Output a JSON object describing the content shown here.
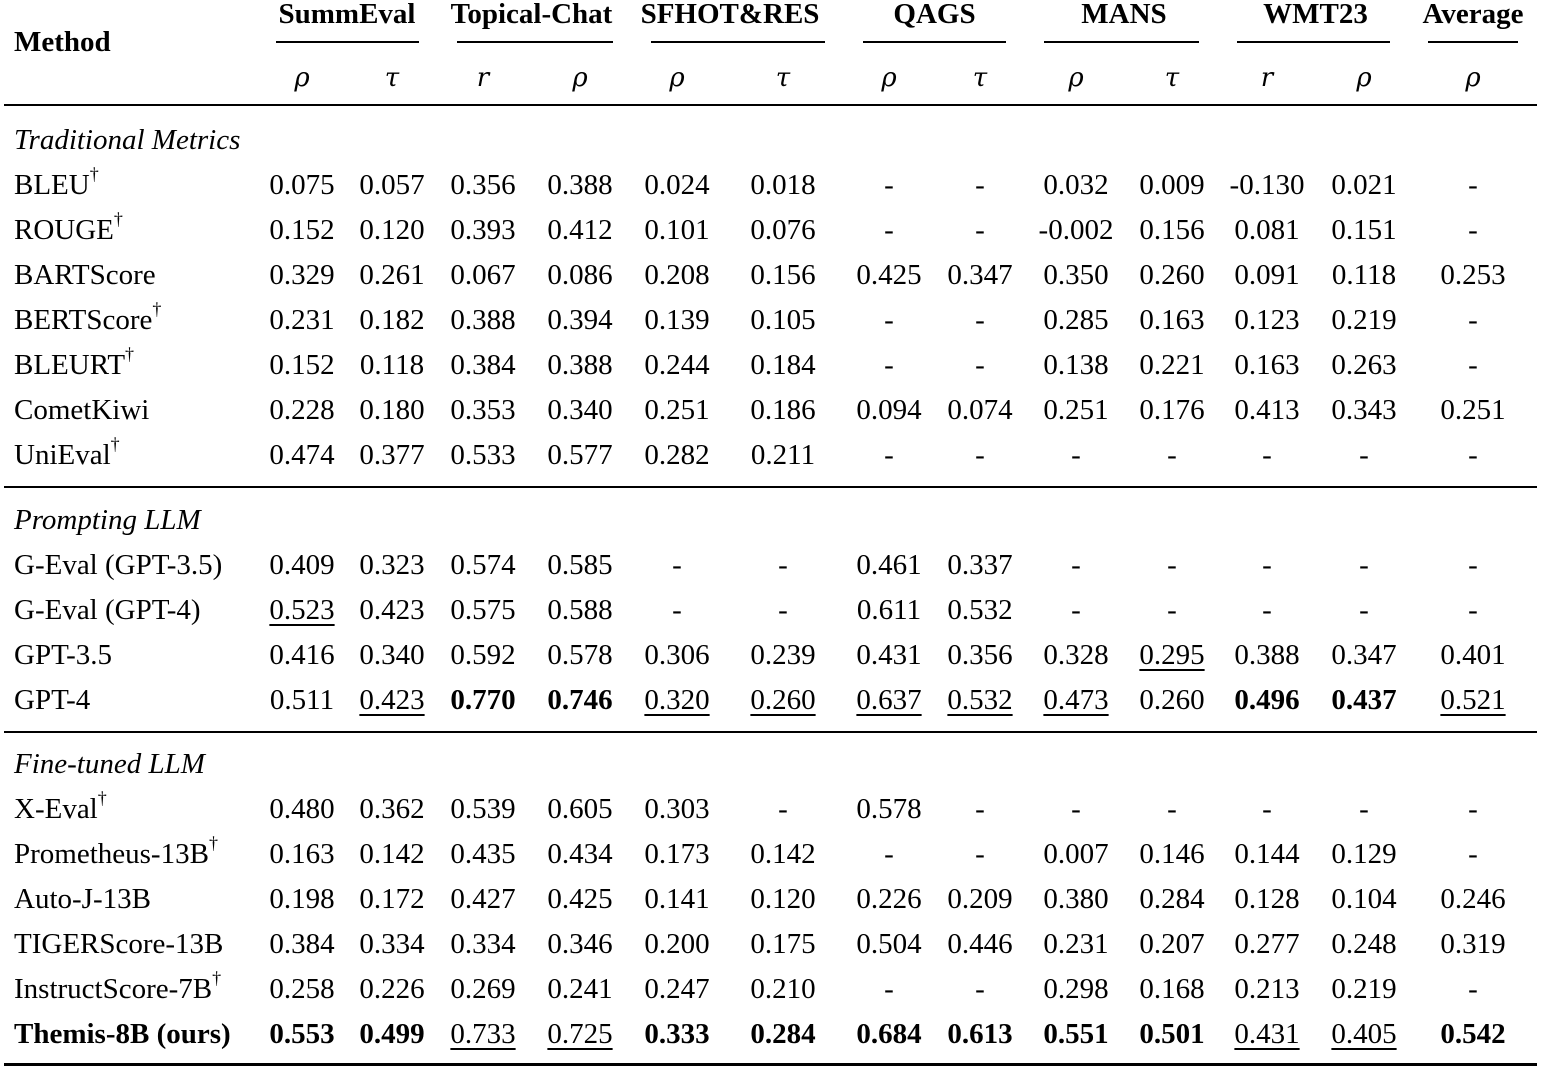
{
  "table": {
    "method_header": "Method",
    "datasets": [
      {
        "name": "SummEval",
        "metrics": [
          "ρ",
          "τ"
        ]
      },
      {
        "name": "Topical-Chat",
        "metrics": [
          "r",
          "ρ"
        ]
      },
      {
        "name": "SFHOT&RES",
        "metrics": [
          "ρ",
          "τ"
        ]
      },
      {
        "name": "QAGS",
        "metrics": [
          "ρ",
          "τ"
        ]
      },
      {
        "name": "MANS",
        "metrics": [
          "ρ",
          "τ"
        ]
      },
      {
        "name": "WMT23",
        "metrics": [
          "r",
          "ρ"
        ]
      },
      {
        "name": "Average",
        "metrics": [
          "ρ"
        ]
      }
    ],
    "groups": [
      {
        "label": "Traditional Metrics",
        "rows": [
          {
            "method": "BLEU",
            "dagger": "†",
            "values": [
              "0.075",
              "0.057",
              "0.356",
              "0.388",
              "0.024",
              "0.018",
              "-",
              "-",
              "0.032",
              "0.009",
              "-0.130",
              "0.021",
              "-"
            ],
            "style": [
              "",
              "",
              "",
              "",
              "",
              "",
              "",
              "",
              "",
              "",
              "",
              "",
              ""
            ]
          },
          {
            "method": "ROUGE",
            "dagger": "†",
            "values": [
              "0.152",
              "0.120",
              "0.393",
              "0.412",
              "0.101",
              "0.076",
              "-",
              "-",
              "-0.002",
              "0.156",
              "0.081",
              "0.151",
              "-"
            ],
            "style": [
              "",
              "",
              "",
              "",
              "",
              "",
              "",
              "",
              "",
              "",
              "",
              "",
              ""
            ]
          },
          {
            "method": "BARTScore",
            "dagger": "",
            "values": [
              "0.329",
              "0.261",
              "0.067",
              "0.086",
              "0.208",
              "0.156",
              "0.425",
              "0.347",
              "0.350",
              "0.260",
              "0.091",
              "0.118",
              "0.253"
            ],
            "style": [
              "",
              "",
              "",
              "",
              "",
              "",
              "",
              "",
              "",
              "",
              "",
              "",
              ""
            ]
          },
          {
            "method": "BERTScore",
            "dagger": "†",
            "values": [
              "0.231",
              "0.182",
              "0.388",
              "0.394",
              "0.139",
              "0.105",
              "-",
              "-",
              "0.285",
              "0.163",
              "0.123",
              "0.219",
              "-"
            ],
            "style": [
              "",
              "",
              "",
              "",
              "",
              "",
              "",
              "",
              "",
              "",
              "",
              "",
              ""
            ]
          },
          {
            "method": "BLEURT",
            "dagger": "†",
            "values": [
              "0.152",
              "0.118",
              "0.384",
              "0.388",
              "0.244",
              "0.184",
              "-",
              "-",
              "0.138",
              "0.221",
              "0.163",
              "0.263",
              "-"
            ],
            "style": [
              "",
              "",
              "",
              "",
              "",
              "",
              "",
              "",
              "",
              "",
              "",
              "",
              ""
            ]
          },
          {
            "method": "CometKiwi",
            "dagger": "",
            "values": [
              "0.228",
              "0.180",
              "0.353",
              "0.340",
              "0.251",
              "0.186",
              "0.094",
              "0.074",
              "0.251",
              "0.176",
              "0.413",
              "0.343",
              "0.251"
            ],
            "style": [
              "",
              "",
              "",
              "",
              "",
              "",
              "",
              "",
              "",
              "",
              "",
              "",
              ""
            ]
          },
          {
            "method": "UniEval",
            "dagger": "†",
            "values": [
              "0.474",
              "0.377",
              "0.533",
              "0.577",
              "0.282",
              "0.211",
              "-",
              "-",
              "-",
              "-",
              "-",
              "-",
              "-"
            ],
            "style": [
              "",
              "",
              "",
              "",
              "",
              "",
              "",
              "",
              "",
              "",
              "",
              "",
              ""
            ]
          }
        ]
      },
      {
        "label": "Prompting LLM",
        "rows": [
          {
            "method": "G-Eval (GPT-3.5)",
            "dagger": "",
            "values": [
              "0.409",
              "0.323",
              "0.574",
              "0.585",
              "-",
              "-",
              "0.461",
              "0.337",
              "-",
              "-",
              "-",
              "-",
              "-"
            ],
            "style": [
              "",
              "",
              "",
              "",
              "",
              "",
              "",
              "",
              "",
              "",
              "",
              "",
              ""
            ]
          },
          {
            "method": "G-Eval (GPT-4)",
            "dagger": "",
            "values": [
              "0.523",
              "0.423",
              "0.575",
              "0.588",
              "-",
              "-",
              "0.611",
              "0.532",
              "-",
              "-",
              "-",
              "-",
              "-"
            ],
            "style": [
              "ul",
              "",
              "",
              "",
              "",
              "",
              "",
              "",
              "",
              "",
              "",
              "",
              ""
            ]
          },
          {
            "method": "GPT-3.5",
            "dagger": "",
            "values": [
              "0.416",
              "0.340",
              "0.592",
              "0.578",
              "0.306",
              "0.239",
              "0.431",
              "0.356",
              "0.328",
              "0.295",
              "0.388",
              "0.347",
              "0.401"
            ],
            "style": [
              "",
              "",
              "",
              "",
              "",
              "",
              "",
              "",
              "",
              "ul",
              "",
              "",
              ""
            ]
          },
          {
            "method": "GPT-4",
            "dagger": "",
            "values": [
              "0.511",
              "0.423",
              "0.770",
              "0.746",
              "0.320",
              "0.260",
              "0.637",
              "0.532",
              "0.473",
              "0.260",
              "0.496",
              "0.437",
              "0.521"
            ],
            "style": [
              "",
              "ul",
              "bold",
              "bold",
              "ul",
              "ul",
              "ul",
              "ul",
              "ul",
              "",
              "bold",
              "bold",
              "ul"
            ]
          }
        ]
      },
      {
        "label": "Fine-tuned LLM",
        "rows": [
          {
            "method": "X-Eval",
            "dagger": "†",
            "values": [
              "0.480",
              "0.362",
              "0.539",
              "0.605",
              "0.303",
              "-",
              "0.578",
              "-",
              "-",
              "-",
              "-",
              "-",
              "-"
            ],
            "style": [
              "",
              "",
              "",
              "",
              "",
              "",
              "",
              "",
              "",
              "",
              "",
              "",
              ""
            ]
          },
          {
            "method": "Prometheus-13B",
            "dagger": "†",
            "values": [
              "0.163",
              "0.142",
              "0.435",
              "0.434",
              "0.173",
              "0.142",
              "-",
              "-",
              "0.007",
              "0.146",
              "0.144",
              "0.129",
              "-"
            ],
            "style": [
              "",
              "",
              "",
              "",
              "",
              "",
              "",
              "",
              "",
              "",
              "",
              "",
              ""
            ]
          },
          {
            "method": "Auto-J-13B",
            "dagger": "",
            "values": [
              "0.198",
              "0.172",
              "0.427",
              "0.425",
              "0.141",
              "0.120",
              "0.226",
              "0.209",
              "0.380",
              "0.284",
              "0.128",
              "0.104",
              "0.246"
            ],
            "style": [
              "",
              "",
              "",
              "",
              "",
              "",
              "",
              "",
              "",
              "",
              "",
              "",
              ""
            ]
          },
          {
            "method": "TIGERScore-13B",
            "dagger": "",
            "values": [
              "0.384",
              "0.334",
              "0.334",
              "0.346",
              "0.200",
              "0.175",
              "0.504",
              "0.446",
              "0.231",
              "0.207",
              "0.277",
              "0.248",
              "0.319"
            ],
            "style": [
              "",
              "",
              "",
              "",
              "",
              "",
              "",
              "",
              "",
              "",
              "",
              "",
              ""
            ]
          },
          {
            "method": "InstructScore-7B",
            "dagger": "†",
            "values": [
              "0.258",
              "0.226",
              "0.269",
              "0.241",
              "0.247",
              "0.210",
              "-",
              "-",
              "0.298",
              "0.168",
              "0.213",
              "0.219",
              "-"
            ],
            "style": [
              "",
              "",
              "",
              "",
              "",
              "",
              "",
              "",
              "",
              "",
              "",
              "",
              ""
            ]
          },
          {
            "method": "Themis-8B (ours)",
            "dagger": "",
            "method_bold": true,
            "values": [
              "0.553",
              "0.499",
              "0.733",
              "0.725",
              "0.333",
              "0.284",
              "0.684",
              "0.613",
              "0.551",
              "0.501",
              "0.431",
              "0.405",
              "0.542"
            ],
            "style": [
              "bold",
              "bold",
              "ul",
              "ul",
              "bold",
              "bold",
              "bold",
              "bold",
              "bold",
              "bold",
              "ul",
              "ul",
              "bold"
            ]
          }
        ]
      }
    ]
  },
  "chart_data": {
    "type": "table",
    "title": "",
    "columns": [
      "Method",
      "SummEval ρ",
      "SummEval τ",
      "Topical-Chat r",
      "Topical-Chat ρ",
      "SFHOT&RES ρ",
      "SFHOT&RES τ",
      "QAGS ρ",
      "QAGS τ",
      "MANS ρ",
      "MANS τ",
      "WMT23 r",
      "WMT23 ρ",
      "Average ρ"
    ],
    "rows": [
      [
        "Traditional Metrics"
      ],
      [
        "BLEU†",
        "0.075",
        "0.057",
        "0.356",
        "0.388",
        "0.024",
        "0.018",
        "-",
        "-",
        "0.032",
        "0.009",
        "-0.130",
        "0.021",
        "-"
      ],
      [
        "ROUGE†",
        "0.152",
        "0.120",
        "0.393",
        "0.412",
        "0.101",
        "0.076",
        "-",
        "-",
        "-0.002",
        "0.156",
        "0.081",
        "0.151",
        "-"
      ],
      [
        "BARTScore",
        "0.329",
        "0.261",
        "0.067",
        "0.086",
        "0.208",
        "0.156",
        "0.425",
        "0.347",
        "0.350",
        "0.260",
        "0.091",
        "0.118",
        "0.253"
      ],
      [
        "BERTScore†",
        "0.231",
        "0.182",
        "0.388",
        "0.394",
        "0.139",
        "0.105",
        "-",
        "-",
        "0.285",
        "0.163",
        "0.123",
        "0.219",
        "-"
      ],
      [
        "BLEURT†",
        "0.152",
        "0.118",
        "0.384",
        "0.388",
        "0.244",
        "0.184",
        "-",
        "-",
        "0.138",
        "0.221",
        "0.163",
        "0.263",
        "-"
      ],
      [
        "CometKiwi",
        "0.228",
        "0.180",
        "0.353",
        "0.340",
        "0.251",
        "0.186",
        "0.094",
        "0.074",
        "0.251",
        "0.176",
        "0.413",
        "0.343",
        "0.251"
      ],
      [
        "UniEval†",
        "0.474",
        "0.377",
        "0.533",
        "0.577",
        "0.282",
        "0.211",
        "-",
        "-",
        "-",
        "-",
        "-",
        "-",
        "-"
      ],
      [
        "Prompting LLM"
      ],
      [
        "G-Eval (GPT-3.5)",
        "0.409",
        "0.323",
        "0.574",
        "0.585",
        "-",
        "-",
        "0.461",
        "0.337",
        "-",
        "-",
        "-",
        "-",
        "-"
      ],
      [
        "G-Eval (GPT-4)",
        "0.523",
        "0.423",
        "0.575",
        "0.588",
        "-",
        "-",
        "0.611",
        "0.532",
        "-",
        "-",
        "-",
        "-",
        "-"
      ],
      [
        "GPT-3.5",
        "0.416",
        "0.340",
        "0.592",
        "0.578",
        "0.306",
        "0.239",
        "0.431",
        "0.356",
        "0.328",
        "0.295",
        "0.388",
        "0.347",
        "0.401"
      ],
      [
        "GPT-4",
        "0.511",
        "0.423",
        "0.770",
        "0.746",
        "0.320",
        "0.260",
        "0.637",
        "0.532",
        "0.473",
        "0.260",
        "0.496",
        "0.437",
        "0.521"
      ],
      [
        "Fine-tuned LLM"
      ],
      [
        "X-Eval†",
        "0.480",
        "0.362",
        "0.539",
        "0.605",
        "0.303",
        "-",
        "0.578",
        "-",
        "-",
        "-",
        "-",
        "-",
        "-"
      ],
      [
        "Prometheus-13B†",
        "0.163",
        "0.142",
        "0.435",
        "0.434",
        "0.173",
        "0.142",
        "-",
        "-",
        "0.007",
        "0.146",
        "0.144",
        "0.129",
        "-"
      ],
      [
        "Auto-J-13B",
        "0.198",
        "0.172",
        "0.427",
        "0.425",
        "0.141",
        "0.120",
        "0.226",
        "0.209",
        "0.380",
        "0.284",
        "0.128",
        "0.104",
        "0.246"
      ],
      [
        "TIGERScore-13B",
        "0.384",
        "0.334",
        "0.334",
        "0.346",
        "0.200",
        "0.175",
        "0.504",
        "0.446",
        "0.231",
        "0.207",
        "0.277",
        "0.248",
        "0.319"
      ],
      [
        "InstructScore-7B†",
        "0.258",
        "0.226",
        "0.269",
        "0.241",
        "0.247",
        "0.210",
        "-",
        "-",
        "0.298",
        "0.168",
        "0.213",
        "0.219",
        "-"
      ],
      [
        "Themis-8B (ours)",
        "0.553",
        "0.499",
        "0.733",
        "0.725",
        "0.333",
        "0.284",
        "0.684",
        "0.613",
        "0.551",
        "0.501",
        "0.431",
        "0.405",
        "0.542"
      ]
    ],
    "annotations": "bold = best per column; underline = second best"
  }
}
